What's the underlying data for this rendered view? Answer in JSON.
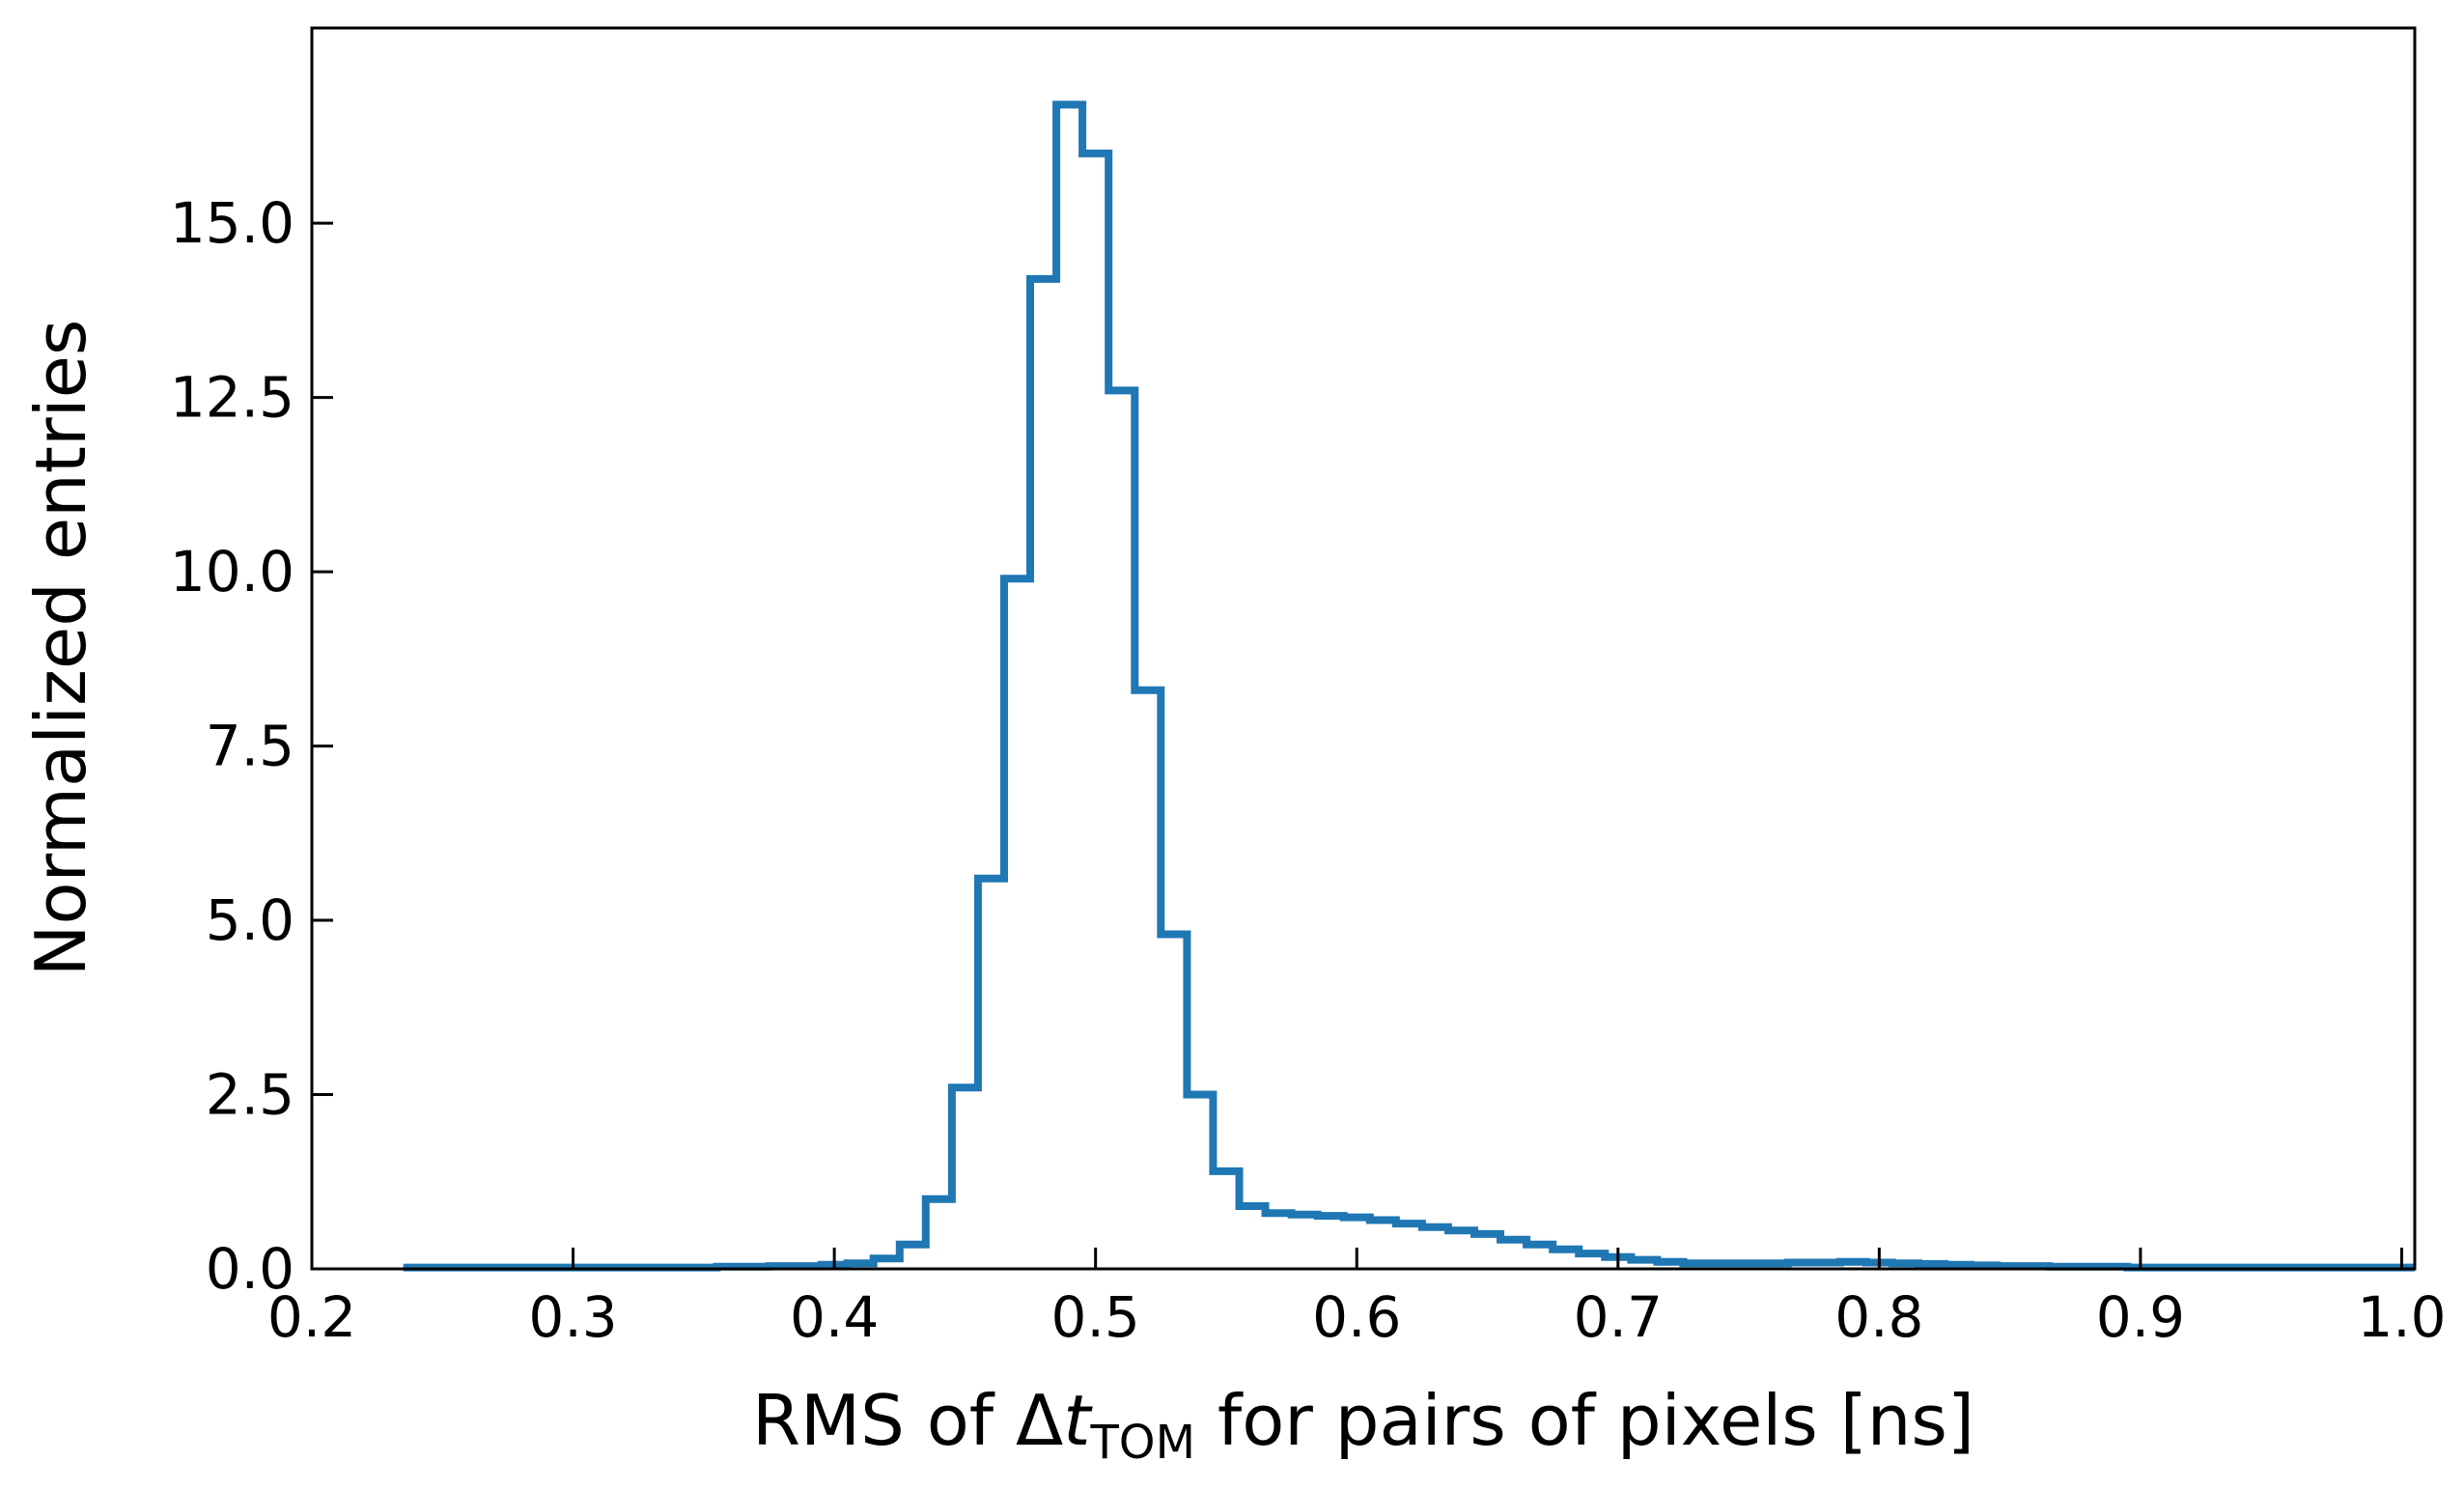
{
  "chart_data": {
    "type": "histogram",
    "title": "",
    "xlabel": {
      "prefix": "RMS of Δ",
      "symbol": "t",
      "subscript": "TOM",
      "suffix": " for pairs of pixels [ns]"
    },
    "ylabel": "Normalized entries",
    "xlim": [
      0.2,
      1.005
    ],
    "ylim": [
      0,
      17.8
    ],
    "x_ticks": [
      0.2,
      0.3,
      0.4,
      0.5,
      0.6,
      0.7,
      0.8,
      0.9,
      1.0
    ],
    "x_tick_labels": [
      "0.2",
      "0.3",
      "0.4",
      "0.5",
      "0.6",
      "0.7",
      "0.8",
      "0.9",
      "1.0"
    ],
    "y_ticks": [
      0,
      2.5,
      5,
      7.5,
      10,
      12.5,
      15
    ],
    "y_tick_labels": [
      "0.0",
      "2.5",
      "5.0",
      "7.5",
      "10.0",
      "12.5",
      "15.0"
    ],
    "grid": false,
    "legend": "none",
    "line_color": "#1f77b4",
    "bin_width": 0.01,
    "bin_edges_start": 0.235,
    "values": [
      0.02,
      0.02,
      0.02,
      0.02,
      0.02,
      0.02,
      0.02,
      0.02,
      0.02,
      0.02,
      0.02,
      0.02,
      0.03,
      0.03,
      0.04,
      0.04,
      0.06,
      0.08,
      0.15,
      0.35,
      1.0,
      2.6,
      5.6,
      9.9,
      14.2,
      16.7,
      16.0,
      12.6,
      8.3,
      4.8,
      2.5,
      1.4,
      0.9,
      0.8,
      0.78,
      0.76,
      0.74,
      0.7,
      0.65,
      0.6,
      0.55,
      0.5,
      0.42,
      0.35,
      0.28,
      0.22,
      0.17,
      0.13,
      0.1,
      0.08,
      0.08,
      0.08,
      0.08,
      0.09,
      0.09,
      0.1,
      0.09,
      0.08,
      0.07,
      0.06,
      0.05,
      0.04,
      0.04,
      0.03,
      0.03,
      0.03,
      0.02,
      0.02,
      0.02,
      0.02,
      0.02,
      0.02,
      0.02,
      0.02,
      0.02,
      0.02,
      0.02
    ]
  }
}
